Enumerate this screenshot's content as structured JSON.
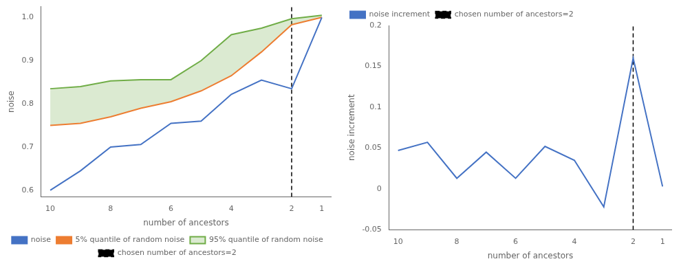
{
  "chart_data": [
    {
      "type": "line",
      "x": [
        10,
        9,
        8,
        7,
        6,
        5,
        4,
        3,
        2,
        1
      ],
      "xlabel": "number of ancestors",
      "ylabel": "noise",
      "xlim": [
        10.3,
        0.7
      ],
      "xticks": [
        10,
        8,
        6,
        4,
        2,
        1
      ],
      "ylim": [
        0.585,
        1.025
      ],
      "yticks": [
        0.6,
        0.7,
        0.8,
        0.9,
        {
          "value": 1,
          "label": "1.0"
        }
      ],
      "grid": false,
      "legend": "lower center",
      "series": [
        {
          "name": "noise",
          "color": "#4472c4",
          "values": [
            0.6,
            0.645,
            0.7,
            0.706,
            0.755,
            0.76,
            0.822,
            0.855,
            0.835,
            1.0
          ]
        },
        {
          "name": "5% quantile of random noise",
          "color": "#ed7d31",
          "values": [
            0.75,
            0.755,
            0.77,
            0.79,
            0.805,
            0.83,
            0.865,
            0.92,
            0.983,
            1.0
          ]
        },
        {
          "name": "95% quantile of random noise",
          "color": "#70ad47",
          "values": [
            0.835,
            0.84,
            0.853,
            0.856,
            0.856,
            0.9,
            0.96,
            0.975,
            0.997,
            1.005
          ]
        },
        {
          "name": "chosen number of ancestors=2",
          "type": "vline",
          "x": 2,
          "color": "black",
          "line_style": "dashed"
        }
      ]
    },
    {
      "type": "line",
      "x": [
        10,
        9,
        8,
        7,
        6,
        5,
        4,
        3,
        2,
        1
      ],
      "xlabel": "number of ancestors",
      "ylabel": "noise increment",
      "xlim": [
        10.3,
        0.7
      ],
      "xticks": [
        10,
        8,
        6,
        4,
        2,
        1
      ],
      "ylim": [
        -0.05,
        0.2
      ],
      "yticks": [
        -0.05,
        0,
        0.05,
        0.1,
        0.15,
        0.2
      ],
      "grid": false,
      "legend": "upper left",
      "series": [
        {
          "name": "noise increment",
          "color": "#4472c4",
          "values": [
            0.047,
            0.057,
            0.013,
            0.045,
            0.013,
            0.052,
            0.035,
            -0.022,
            0.16,
            0.003
          ]
        },
        {
          "name": "chosen number of ancestors=2",
          "type": "vline",
          "x": 2,
          "color": "black",
          "line_style": "dashed"
        }
      ]
    }
  ]
}
